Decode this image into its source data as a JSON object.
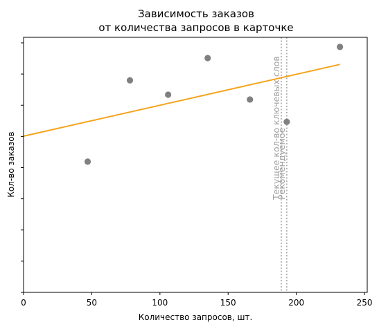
{
  "chart_data": {
    "type": "scatter",
    "title_lines": [
      "Зависимость заказов",
      "от количества запросов в карточке"
    ],
    "xlabel": "Количество запросов, шт.",
    "ylabel": "Кол-во заказов",
    "xlim": [
      0,
      252
    ],
    "x_ticks": [
      0,
      50,
      100,
      150,
      200,
      250
    ],
    "y_tick_count": 9,
    "grid": false,
    "points": {
      "x": [
        47,
        78,
        106,
        135,
        166,
        193,
        232
      ],
      "y": [
        4.1,
        6.65,
        6.2,
        7.35,
        6.05,
        5.35,
        7.7
      ],
      "color": "#808080"
    },
    "ylim": [
      0,
      8.0
    ],
    "trendline": {
      "x": [
        0,
        232
      ],
      "y": [
        4.9,
        7.15
      ],
      "color": "#f5a31a"
    },
    "vlines": [
      {
        "x": 189,
        "label": "Текущее кол-во ключевых слов",
        "color": "#a8a8a8"
      },
      {
        "x": 193,
        "label": "Рекомендуемое",
        "color": "#a8a8a8"
      }
    ]
  }
}
